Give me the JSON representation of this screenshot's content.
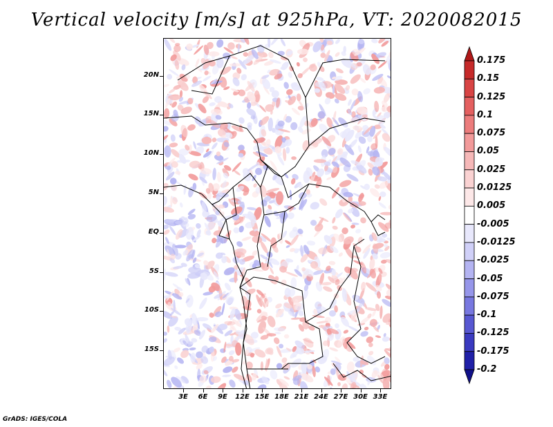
{
  "title": "Vertical velocity [m/s] at 925hPa, VT: 2020082015",
  "credit": "GrADS: IGES/COLA",
  "lat_ticks": [
    "20N",
    "15N",
    "10N",
    "5N",
    "EQ",
    "5S",
    "10S",
    "15S"
  ],
  "lon_ticks": [
    "3E",
    "6E",
    "9E",
    "12E",
    "15E",
    "18E",
    "21E",
    "24E",
    "27E",
    "30E",
    "33E"
  ],
  "colorbar": {
    "labels": [
      "0.175",
      "0.15",
      "0.125",
      "0.1",
      "0.075",
      "0.05",
      "0.025",
      "0.0125",
      "0.005",
      "-0.005",
      "-0.0125",
      "-0.025",
      "-0.05",
      "-0.075",
      "-0.1",
      "-0.125",
      "-0.175",
      "-0.2"
    ],
    "colors": [
      "#b01818",
      "#c62a2a",
      "#d84444",
      "#e46060",
      "#ec7c7c",
      "#f29a9a",
      "#f6b8b8",
      "#fad2d2",
      "#fde8e8",
      "#ffffff",
      "#e8e8fc",
      "#d0d0f8",
      "#b4b4f2",
      "#9696ea",
      "#7878e0",
      "#5858d2",
      "#3a3ac0",
      "#2020a8",
      "#10108a"
    ]
  },
  "chart_data": {
    "type": "heatmap",
    "title": "Vertical velocity [m/s] at 925hPa, VT: 2020082015",
    "variable": "Vertical velocity",
    "units": "m/s",
    "level": "925hPa",
    "valid_time": "2020082015",
    "lon_range": [
      0,
      36
    ],
    "lat_range": [
      -20,
      24
    ],
    "colorbar_levels": [
      0.175,
      0.15,
      0.125,
      0.1,
      0.075,
      0.05,
      0.025,
      0.0125,
      0.005,
      -0.005,
      -0.0125,
      -0.025,
      -0.05,
      -0.075,
      -0.1,
      -0.125,
      -0.175,
      -0.2
    ]
  }
}
